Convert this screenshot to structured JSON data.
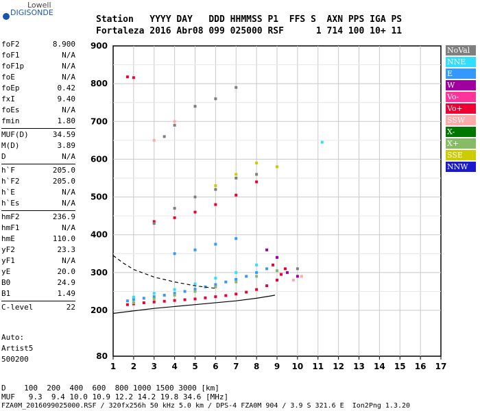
{
  "logo": {
    "company": "Lowell",
    "brand": "DIGISONDE"
  },
  "header": {
    "line1": "Station   YYYY DAY   DDD HHMMSS P1  FFS S  AXN PPS IGA PS",
    "line2": "Fortaleza 2016 Abr08 099 025000 RSF      1 714 100 10+ 11"
  },
  "params": [
    {
      "label": "foF2",
      "value": "8.900"
    },
    {
      "label": "foF1",
      "value": "N/A"
    },
    {
      "label": "foF1p",
      "value": "N/A"
    },
    {
      "label": "foE",
      "value": "N/A"
    },
    {
      "label": "foEp",
      "value": "0.42"
    },
    {
      "label": "fxI",
      "value": "9.40"
    },
    {
      "label": "foEs",
      "value": "N/A"
    },
    {
      "label": "fmin",
      "value": "1.80"
    },
    {
      "label": "MUF(D)",
      "value": "34.59"
    },
    {
      "label": "M(D)",
      "value": "3.89"
    },
    {
      "label": "D",
      "value": "N/A"
    },
    {
      "label": "h`F",
      "value": "205.0"
    },
    {
      "label": "h`F2",
      "value": "205.0"
    },
    {
      "label": "h`E",
      "value": "N/A"
    },
    {
      "label": "h`Es",
      "value": "N/A"
    },
    {
      "label": "hmF2",
      "value": "236.9"
    },
    {
      "label": "hmF1",
      "value": "N/A"
    },
    {
      "label": "hmE",
      "value": "110.0"
    },
    {
      "label": "yF2",
      "value": "23.3"
    },
    {
      "label": "yF1",
      "value": "N/A"
    },
    {
      "label": "yE",
      "value": "20.0"
    },
    {
      "label": "B0",
      "value": "24.9"
    },
    {
      "label": "B1",
      "value": "1.49"
    },
    {
      "label": "C-level",
      "value": "22"
    }
  ],
  "auto": {
    "label": "Auto:",
    "artist": "Artist5",
    "version": "500200"
  },
  "legend": [
    {
      "label": "NoVal",
      "color": "#7f7f7f"
    },
    {
      "label": "NNE",
      "color": "#33ddff"
    },
    {
      "label": "E",
      "color": "#3399ff"
    },
    {
      "label": "W",
      "color": "#a000a0"
    },
    {
      "label": "Vo-",
      "color": "#ff3399"
    },
    {
      "label": "Vo+",
      "color": "#ee0033"
    },
    {
      "label": "SSW",
      "color": "#ffaaaa"
    },
    {
      "label": "X-",
      "color": "#007700"
    },
    {
      "label": "X+",
      "color": "#88bb66"
    },
    {
      "label": "SSE",
      "color": "#cccc00"
    },
    {
      "label": "NNW",
      "color": "#1a1acc"
    }
  ],
  "footer": {
    "d_line": "D    100  200  400  600  800 1000 1500 3000 [km]",
    "muf_line": "MUF   9.3  9.4 10.0 10.9 12.2 14.2 19.8 34.6 [MHz]",
    "file_line": "FZA0M_2016099025000.RSF / 320fx256h 50 kHz 5.0 km / DPS-4 FZA0M 904 / 3.9 S 321.6 E  Ion2Png 1.3.20"
  },
  "chart_data": {
    "type": "scatter",
    "xlim": [
      1,
      17
    ],
    "ylim": [
      80,
      900
    ],
    "x_ticks": [
      "1",
      "2",
      "3",
      "4",
      "5",
      "6",
      "7",
      "8",
      "9",
      "10",
      "11",
      "12",
      "13",
      "14",
      "15",
      "16",
      "17"
    ],
    "y_ticks": [
      "80",
      "200",
      "300",
      "400",
      "500",
      "600",
      "700",
      "800",
      "900"
    ],
    "grid": true,
    "series": [
      {
        "name": "Vo+",
        "color": "#ee0033",
        "points": [
          [
            1.7,
            215
          ],
          [
            2.0,
            217
          ],
          [
            2.5,
            220
          ],
          [
            3.0,
            222
          ],
          [
            3.5,
            224
          ],
          [
            4.0,
            226
          ],
          [
            4.5,
            228
          ],
          [
            5.0,
            230
          ],
          [
            5.5,
            233
          ],
          [
            6.0,
            236
          ],
          [
            6.5,
            239
          ],
          [
            7.0,
            243
          ],
          [
            7.5,
            248
          ],
          [
            8.0,
            255
          ],
          [
            8.5,
            265
          ],
          [
            9.0,
            280
          ],
          [
            9.2,
            295
          ],
          [
            8.8,
            320
          ],
          [
            9.4,
            310
          ],
          [
            1.7,
            818
          ],
          [
            2.0,
            816
          ],
          [
            3.0,
            435
          ],
          [
            4.0,
            445
          ],
          [
            5.0,
            460
          ],
          [
            6.0,
            480
          ],
          [
            7.0,
            505
          ],
          [
            8.0,
            540
          ]
        ]
      },
      {
        "name": "E",
        "color": "#3399ff",
        "points": [
          [
            1.7,
            225
          ],
          [
            2.0,
            228
          ],
          [
            2.5,
            232
          ],
          [
            3.0,
            236
          ],
          [
            3.5,
            240
          ],
          [
            4.0,
            245
          ],
          [
            4.5,
            250
          ],
          [
            5.0,
            256
          ],
          [
            5.5,
            262
          ],
          [
            6.0,
            268
          ],
          [
            6.5,
            275
          ],
          [
            7.0,
            282
          ],
          [
            7.5,
            290
          ],
          [
            8.0,
            300
          ],
          [
            8.5,
            310
          ],
          [
            4.0,
            350
          ],
          [
            5.0,
            360
          ],
          [
            6.0,
            375
          ],
          [
            7.0,
            390
          ]
        ]
      },
      {
        "name": "NNE",
        "color": "#33ddff",
        "points": [
          [
            2.0,
            235
          ],
          [
            3.0,
            245
          ],
          [
            4.0,
            255
          ],
          [
            5.0,
            270
          ],
          [
            6.0,
            285
          ],
          [
            7.0,
            300
          ],
          [
            8.0,
            320
          ],
          [
            11.2,
            645
          ]
        ]
      },
      {
        "name": "X+",
        "color": "#88bb66",
        "points": [
          [
            2.0,
            220
          ],
          [
            3.0,
            230
          ],
          [
            4.0,
            240
          ],
          [
            5.0,
            250
          ],
          [
            6.0,
            262
          ],
          [
            7.0,
            275
          ],
          [
            8.0,
            290
          ],
          [
            9.0,
            305
          ]
        ]
      },
      {
        "name": "SSE",
        "color": "#cccc00",
        "points": [
          [
            6.0,
            530
          ],
          [
            7.0,
            560
          ],
          [
            8.0,
            590
          ],
          [
            9.0,
            580
          ]
        ]
      },
      {
        "name": "NoVal",
        "color": "#7f7f7f",
        "points": [
          [
            3.0,
            430
          ],
          [
            4.0,
            470
          ],
          [
            5.0,
            500
          ],
          [
            6.0,
            520
          ],
          [
            7.0,
            550
          ],
          [
            8.0,
            560
          ],
          [
            3.5,
            660
          ],
          [
            4.0,
            690
          ],
          [
            5.0,
            740
          ],
          [
            6.0,
            760
          ],
          [
            7.0,
            790
          ],
          [
            10.0,
            310
          ]
        ]
      },
      {
        "name": "W",
        "color": "#a000a0",
        "points": [
          [
            8.5,
            360
          ],
          [
            9.0,
            340
          ],
          [
            9.5,
            300
          ],
          [
            10.0,
            290
          ]
        ]
      },
      {
        "name": "SSW",
        "color": "#ffaaaa",
        "points": [
          [
            9.8,
            280
          ],
          [
            10.2,
            290
          ],
          [
            3.0,
            650
          ],
          [
            4.0,
            700
          ]
        ]
      }
    ],
    "curves": [
      {
        "style": "solid",
        "points": [
          [
            1.0,
            192
          ],
          [
            3.0,
            205
          ],
          [
            5.0,
            215
          ],
          [
            7.0,
            225
          ],
          [
            8.0,
            232
          ],
          [
            8.7,
            238
          ],
          [
            8.9,
            240
          ]
        ]
      },
      {
        "style": "dashed",
        "points": [
          [
            1.0,
            345
          ],
          [
            1.5,
            325
          ],
          [
            2.0,
            308
          ],
          [
            3.0,
            288
          ],
          [
            4.0,
            275
          ],
          [
            5.0,
            265
          ],
          [
            6.0,
            258
          ]
        ]
      }
    ]
  }
}
